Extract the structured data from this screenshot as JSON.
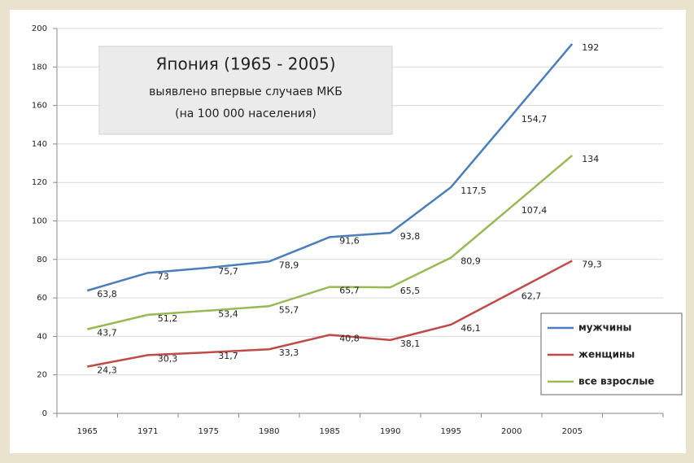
{
  "chart_data": {
    "type": "line",
    "title": "Япония (1965 - 2005)",
    "subtitle": [
      "выявлено впервые случаев МКБ",
      "(на 100 000 населения)"
    ],
    "categories": [
      "1965",
      "1971",
      "1975",
      "1980",
      "1985",
      "1990",
      "1995",
      "2000",
      "2005",
      null
    ],
    "series": [
      {
        "name": "мужчины",
        "color": "#4a7ebb",
        "values": [
          63.8,
          73,
          75.7,
          78.9,
          91.6,
          93.8,
          117.5,
          154.7,
          192,
          null
        ],
        "value_labels": [
          "63,8",
          "73",
          "75,7",
          "78,9",
          "91,6",
          "93,8",
          "117,5",
          "154,7",
          "192",
          null
        ]
      },
      {
        "name": "женщины",
        "color": "#be4b48",
        "values": [
          24.3,
          30.3,
          31.7,
          33.3,
          40.8,
          38.1,
          46.1,
          62.7,
          79.3,
          null
        ],
        "value_labels": [
          "24,3",
          "30,3",
          "31,7",
          "33,3",
          "40,8",
          "38,1",
          "46,1",
          "62,7",
          "79,3",
          null
        ]
      },
      {
        "name": "все взрослые",
        "color": "#98b954",
        "values": [
          43.7,
          51.2,
          53.4,
          55.7,
          65.7,
          65.5,
          80.9,
          107.4,
          134,
          null
        ],
        "value_labels": [
          "43,7",
          "51,2",
          "53,4",
          "55,7",
          "65,7",
          "65,5",
          "80,9",
          "107,4",
          "134",
          null
        ]
      }
    ],
    "ylim": [
      0,
      200
    ],
    "yticks": [
      0,
      20,
      40,
      60,
      80,
      100,
      120,
      140,
      160,
      180,
      200
    ],
    "grid": true,
    "legend": "right"
  }
}
